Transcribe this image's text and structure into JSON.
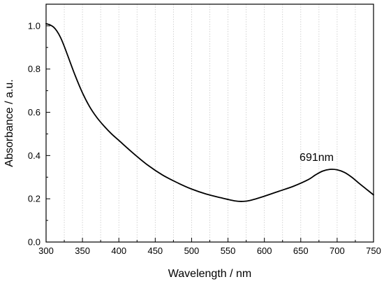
{
  "chart_data": {
    "type": "line",
    "title": "",
    "xlabel": "Wavelength / nm",
    "ylabel": "Absorbance / a.u.",
    "xlim": [
      300,
      750
    ],
    "ylim": [
      0.0,
      1.1
    ],
    "x_ticks": [
      300,
      350,
      400,
      450,
      500,
      550,
      600,
      650,
      700,
      750
    ],
    "x_tick_labels": [
      "300",
      "350",
      "400",
      "450",
      "500",
      "550",
      "600",
      "650",
      "700",
      "750"
    ],
    "y_ticks": [
      0.0,
      0.2,
      0.4,
      0.6,
      0.8,
      1.0
    ],
    "y_tick_labels": [
      "0.0",
      "0.2",
      "0.4",
      "0.6",
      "0.8",
      "1.0"
    ],
    "grid": "vertical-dotted",
    "legend": "none",
    "series": [
      {
        "color": "#000000",
        "x": [
          300,
          305,
          310,
          315,
          320,
          325,
          330,
          340,
          350,
          360,
          370,
          380,
          390,
          400,
          420,
          440,
          460,
          480,
          500,
          520,
          540,
          560,
          570,
          580,
          600,
          620,
          640,
          660,
          670,
          680,
          690,
          700,
          710,
          720,
          730,
          740,
          750
        ],
        "y": [
          1.01,
          1.005,
          0.995,
          0.975,
          0.945,
          0.905,
          0.86,
          0.77,
          0.69,
          0.625,
          0.575,
          0.535,
          0.5,
          0.47,
          0.41,
          0.355,
          0.31,
          0.275,
          0.245,
          0.222,
          0.205,
          0.19,
          0.188,
          0.192,
          0.212,
          0.235,
          0.258,
          0.288,
          0.31,
          0.328,
          0.336,
          0.334,
          0.322,
          0.3,
          0.272,
          0.245,
          0.218
        ]
      }
    ],
    "annotations": [
      {
        "text": "691nm",
        "x": 691,
        "y": 0.336
      }
    ]
  }
}
